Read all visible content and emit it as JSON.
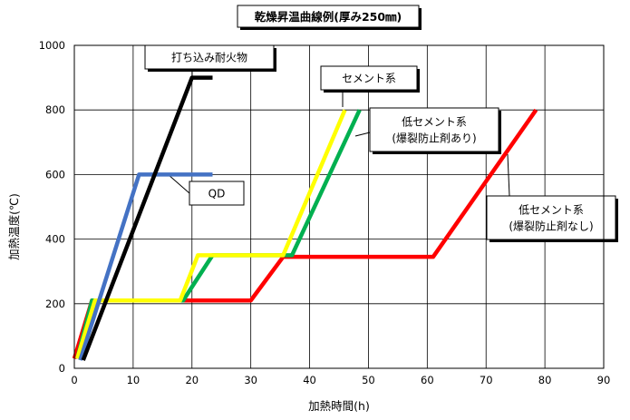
{
  "chart_data": {
    "type": "line",
    "title": "乾燥昇温曲線例(厚み250㎜)",
    "xlabel": "加熱時間(h)",
    "ylabel": "加熱温度(℃)",
    "xlim": [
      0,
      90
    ],
    "ylim": [
      0,
      1000
    ],
    "xticks": [
      "0",
      "10",
      "20",
      "30",
      "40",
      "50",
      "60",
      "70",
      "80",
      "90"
    ],
    "yticks": [
      "0",
      "200",
      "400",
      "600",
      "800",
      "1000"
    ],
    "grid": true,
    "legend": "none",
    "series": [
      {
        "name": "打ち込み耐火物",
        "color": "#000000",
        "x": [
          1.5,
          20,
          23.5
        ],
        "y": [
          25,
          900,
          900
        ]
      },
      {
        "name": "QD",
        "color": "#4472c4",
        "x": [
          1,
          11,
          23.5
        ],
        "y": [
          25,
          600,
          600
        ]
      },
      {
        "name": "セメント系",
        "color": "#ffff00",
        "x": [
          0.5,
          3.5,
          18,
          21,
          35.5,
          46
        ],
        "y": [
          30,
          210,
          210,
          350,
          350,
          800
        ]
      },
      {
        "name": "低セメント系(爆裂防止剤あり)",
        "color": "#00b050",
        "x": [
          0.5,
          3,
          18.5,
          23.5,
          37,
          48.5
        ],
        "y": [
          30,
          210,
          210,
          350,
          350,
          800
        ]
      },
      {
        "name": "低セメント系(爆裂防止剤なし)",
        "color": "#ff0000",
        "x": [
          0,
          3,
          30,
          35.5,
          61,
          78.5
        ],
        "y": [
          30,
          210,
          210,
          345,
          345,
          800
        ]
      }
    ],
    "annotations": [
      {
        "lines": [
          "打ち込み耐火物"
        ],
        "series": 0
      },
      {
        "lines": [
          "セメント系"
        ],
        "series": 2
      },
      {
        "lines": [
          "低セメント系",
          "(爆裂防止剤あり)"
        ],
        "series": 3
      },
      {
        "lines": [
          "QD"
        ],
        "series": 1
      },
      {
        "lines": [
          "低セメント系",
          "(爆裂防止剤なし)"
        ],
        "series": 4
      }
    ]
  }
}
